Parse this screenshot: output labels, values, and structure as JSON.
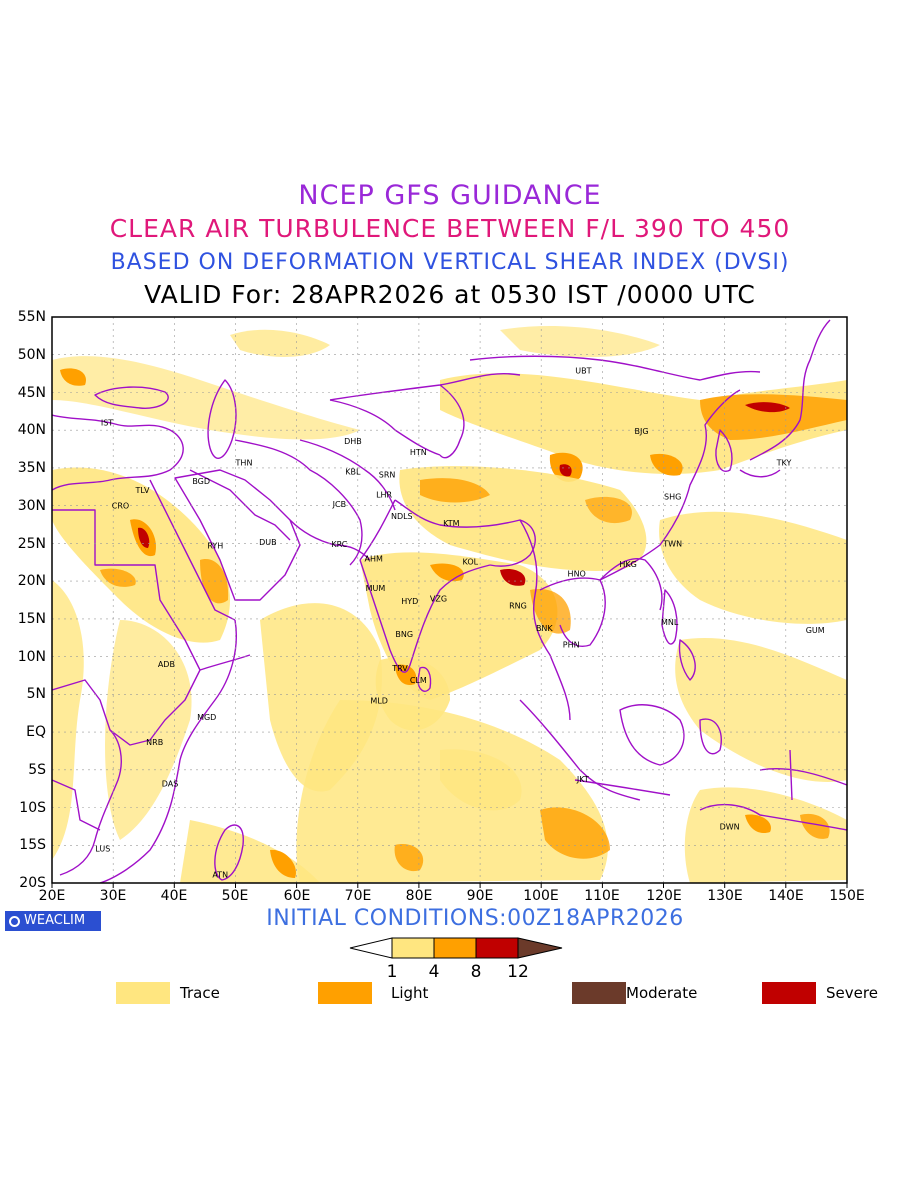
{
  "header": {
    "title1": "NCEP GFS GUIDANCE",
    "title2": "CLEAR AIR TURBULENCE BETWEEN F/L 390 TO 450",
    "title3": "BASED ON DEFORMATION VERTICAL SHEAR INDEX (DVSI)",
    "title4": "VALID For: 28APR2026 at 0530 IST /0000 UTC"
  },
  "colors": {
    "title1": "#9a28d8",
    "title2": "#e0187a",
    "title3": "#2f52e0",
    "title4": "#000000",
    "border": "#a010c8",
    "trace": "#ffe680",
    "light": "#ffa000",
    "severe": "#c00000",
    "moderate": "#6b3a2a",
    "init": "#3d6fe0"
  },
  "axes": {
    "lat_labels": [
      "55N",
      "50N",
      "45N",
      "40N",
      "35N",
      "30N",
      "25N",
      "20N",
      "15N",
      "10N",
      "5N",
      "EQ",
      "5S",
      "10S",
      "15S",
      "20S"
    ],
    "lon_labels": [
      "20E",
      "30E",
      "40E",
      "50E",
      "60E",
      "70E",
      "80E",
      "90E",
      "100E",
      "110E",
      "120E",
      "130E",
      "140E",
      "150E"
    ]
  },
  "cities": [
    {
      "name": "UBT",
      "lon": 106.9,
      "lat": 47.9
    },
    {
      "name": "BJG",
      "lon": 116.4,
      "lat": 39.9
    },
    {
      "name": "TKY",
      "lon": 139.7,
      "lat": 35.7
    },
    {
      "name": "SHG",
      "lon": 121.5,
      "lat": 31.2
    },
    {
      "name": "TWN",
      "lon": 121.5,
      "lat": 25.0
    },
    {
      "name": "HKG",
      "lon": 114.2,
      "lat": 22.3
    },
    {
      "name": "HNO",
      "lon": 105.8,
      "lat": 21.0
    },
    {
      "name": "MNL",
      "lon": 121.0,
      "lat": 14.6
    },
    {
      "name": "GUM",
      "lon": 144.8,
      "lat": 13.5
    },
    {
      "name": "BNK",
      "lon": 100.5,
      "lat": 13.8
    },
    {
      "name": "PHN",
      "lon": 104.9,
      "lat": 11.6
    },
    {
      "name": "RNG",
      "lon": 96.2,
      "lat": 16.8
    },
    {
      "name": "IST",
      "lon": 29.0,
      "lat": 41.0
    },
    {
      "name": "THN",
      "lon": 51.4,
      "lat": 35.7
    },
    {
      "name": "BGD",
      "lon": 44.4,
      "lat": 33.3
    },
    {
      "name": "TLV",
      "lon": 34.8,
      "lat": 32.1
    },
    {
      "name": "CRO",
      "lon": 31.2,
      "lat": 30.0
    },
    {
      "name": "RYH",
      "lon": 46.7,
      "lat": 24.7
    },
    {
      "name": "DUB",
      "lon": 55.3,
      "lat": 25.2
    },
    {
      "name": "DHB",
      "lon": 69.2,
      "lat": 38.6
    },
    {
      "name": "HTN",
      "lon": 79.9,
      "lat": 37.1
    },
    {
      "name": "KBL",
      "lon": 69.2,
      "lat": 34.5
    },
    {
      "name": "SRN",
      "lon": 74.8,
      "lat": 34.1
    },
    {
      "name": "LHR",
      "lon": 74.3,
      "lat": 31.5
    },
    {
      "name": "JCB",
      "lon": 67.0,
      "lat": 30.2
    },
    {
      "name": "NDLS",
      "lon": 77.2,
      "lat": 28.6
    },
    {
      "name": "KTM",
      "lon": 85.3,
      "lat": 27.7
    },
    {
      "name": "KRC",
      "lon": 67.0,
      "lat": 24.9
    },
    {
      "name": "AHM",
      "lon": 72.6,
      "lat": 23.0
    },
    {
      "name": "KOL",
      "lon": 88.4,
      "lat": 22.6
    },
    {
      "name": "MUM",
      "lon": 72.9,
      "lat": 19.1
    },
    {
      "name": "HYD",
      "lon": 78.5,
      "lat": 17.4
    },
    {
      "name": "VZG",
      "lon": 83.2,
      "lat": 17.7
    },
    {
      "name": "BNG",
      "lon": 77.6,
      "lat": 13.0
    },
    {
      "name": "TRV",
      "lon": 76.9,
      "lat": 8.5
    },
    {
      "name": "CLM",
      "lon": 79.9,
      "lat": 6.9
    },
    {
      "name": "MLD",
      "lon": 73.5,
      "lat": 4.2
    },
    {
      "name": "ADB",
      "lon": 38.7,
      "lat": 9.0
    },
    {
      "name": "MGD",
      "lon": 45.3,
      "lat": 2.0
    },
    {
      "name": "NRB",
      "lon": 36.8,
      "lat": -1.3
    },
    {
      "name": "DAS",
      "lon": 39.3,
      "lat": -6.8
    },
    {
      "name": "LUS",
      "lon": 28.3,
      "lat": -15.4
    },
    {
      "name": "ATN",
      "lon": 47.5,
      "lat": -18.9
    },
    {
      "name": "JKT",
      "lon": 106.8,
      "lat": -6.2
    },
    {
      "name": "DWN",
      "lon": 130.8,
      "lat": -12.5
    }
  ],
  "footer": {
    "badge": "WEACLIM",
    "init": "INITIAL CONDITIONS:00Z18APR2026"
  },
  "colorbar": {
    "ticks": [
      "1",
      "4",
      "8",
      "12"
    ]
  },
  "legend": [
    {
      "label": "Trace",
      "color": "#ffe680"
    },
    {
      "label": "Light",
      "color": "#ffa000"
    },
    {
      "label": "Moderate",
      "color": "#6b3a2a"
    },
    {
      "label": "Severe",
      "color": "#c00000"
    }
  ]
}
